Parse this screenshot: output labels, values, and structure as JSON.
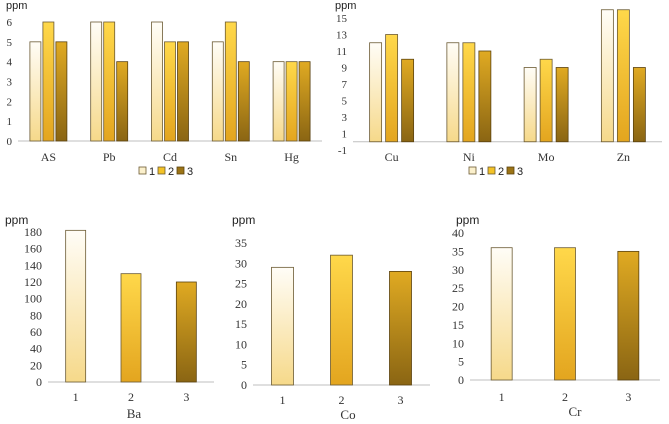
{
  "chart_data": [
    {
      "id": "c1",
      "type": "bar",
      "ylabel": "ppm",
      "xlabel": "",
      "ylim": [
        0,
        6
      ],
      "yticks": [
        0,
        1,
        2,
        3,
        4,
        5,
        6
      ],
      "categories": [
        "AS",
        "Pb",
        "Cd",
        "Sn",
        "Hg"
      ],
      "series": [
        {
          "name": "1",
          "values": [
            5,
            6,
            6,
            5,
            4
          ]
        },
        {
          "name": "2",
          "values": [
            6,
            6,
            5,
            6,
            4
          ]
        },
        {
          "name": "3",
          "values": [
            5,
            4,
            5,
            4,
            4
          ]
        }
      ],
      "legend": "bottom"
    },
    {
      "id": "c2",
      "type": "bar",
      "ylabel": "ppm",
      "xlabel": "",
      "ylim": [
        -1,
        15
      ],
      "yticks": [
        -1,
        1,
        3,
        5,
        7,
        9,
        11,
        13,
        15
      ],
      "categories": [
        "Cu",
        "Ni",
        "Mo",
        "Zn"
      ],
      "series": [
        {
          "name": "1",
          "values": [
            12,
            12,
            9,
            16
          ]
        },
        {
          "name": "2",
          "values": [
            13,
            12,
            10,
            16
          ]
        },
        {
          "name": "3",
          "values": [
            10,
            11,
            9,
            9
          ]
        }
      ],
      "legend": "bottom"
    },
    {
      "id": "c3",
      "type": "bar",
      "ylabel": "ppm",
      "xlabel": "Ba",
      "ylim": [
        0,
        180
      ],
      "yticks": [
        0,
        20,
        40,
        60,
        80,
        100,
        120,
        140,
        160,
        180
      ],
      "categories": [
        "1",
        "2",
        "3"
      ],
      "values": [
        182,
        130,
        120
      ]
    },
    {
      "id": "c4",
      "type": "bar",
      "ylabel": "ppm",
      "xlabel": "Co",
      "ylim": [
        0,
        35
      ],
      "yticks": [
        0,
        5,
        10,
        15,
        20,
        25,
        30,
        35
      ],
      "categories": [
        "1",
        "2",
        "3"
      ],
      "values": [
        29,
        32,
        28
      ]
    },
    {
      "id": "c5",
      "type": "bar",
      "ylabel": "ppm",
      "xlabel": "Cr",
      "ylim": [
        0,
        40
      ],
      "yticks": [
        0,
        5,
        10,
        15,
        20,
        25,
        30,
        35,
        40
      ],
      "categories": [
        "1",
        "2",
        "3"
      ],
      "values": [
        36,
        36,
        35
      ]
    }
  ]
}
